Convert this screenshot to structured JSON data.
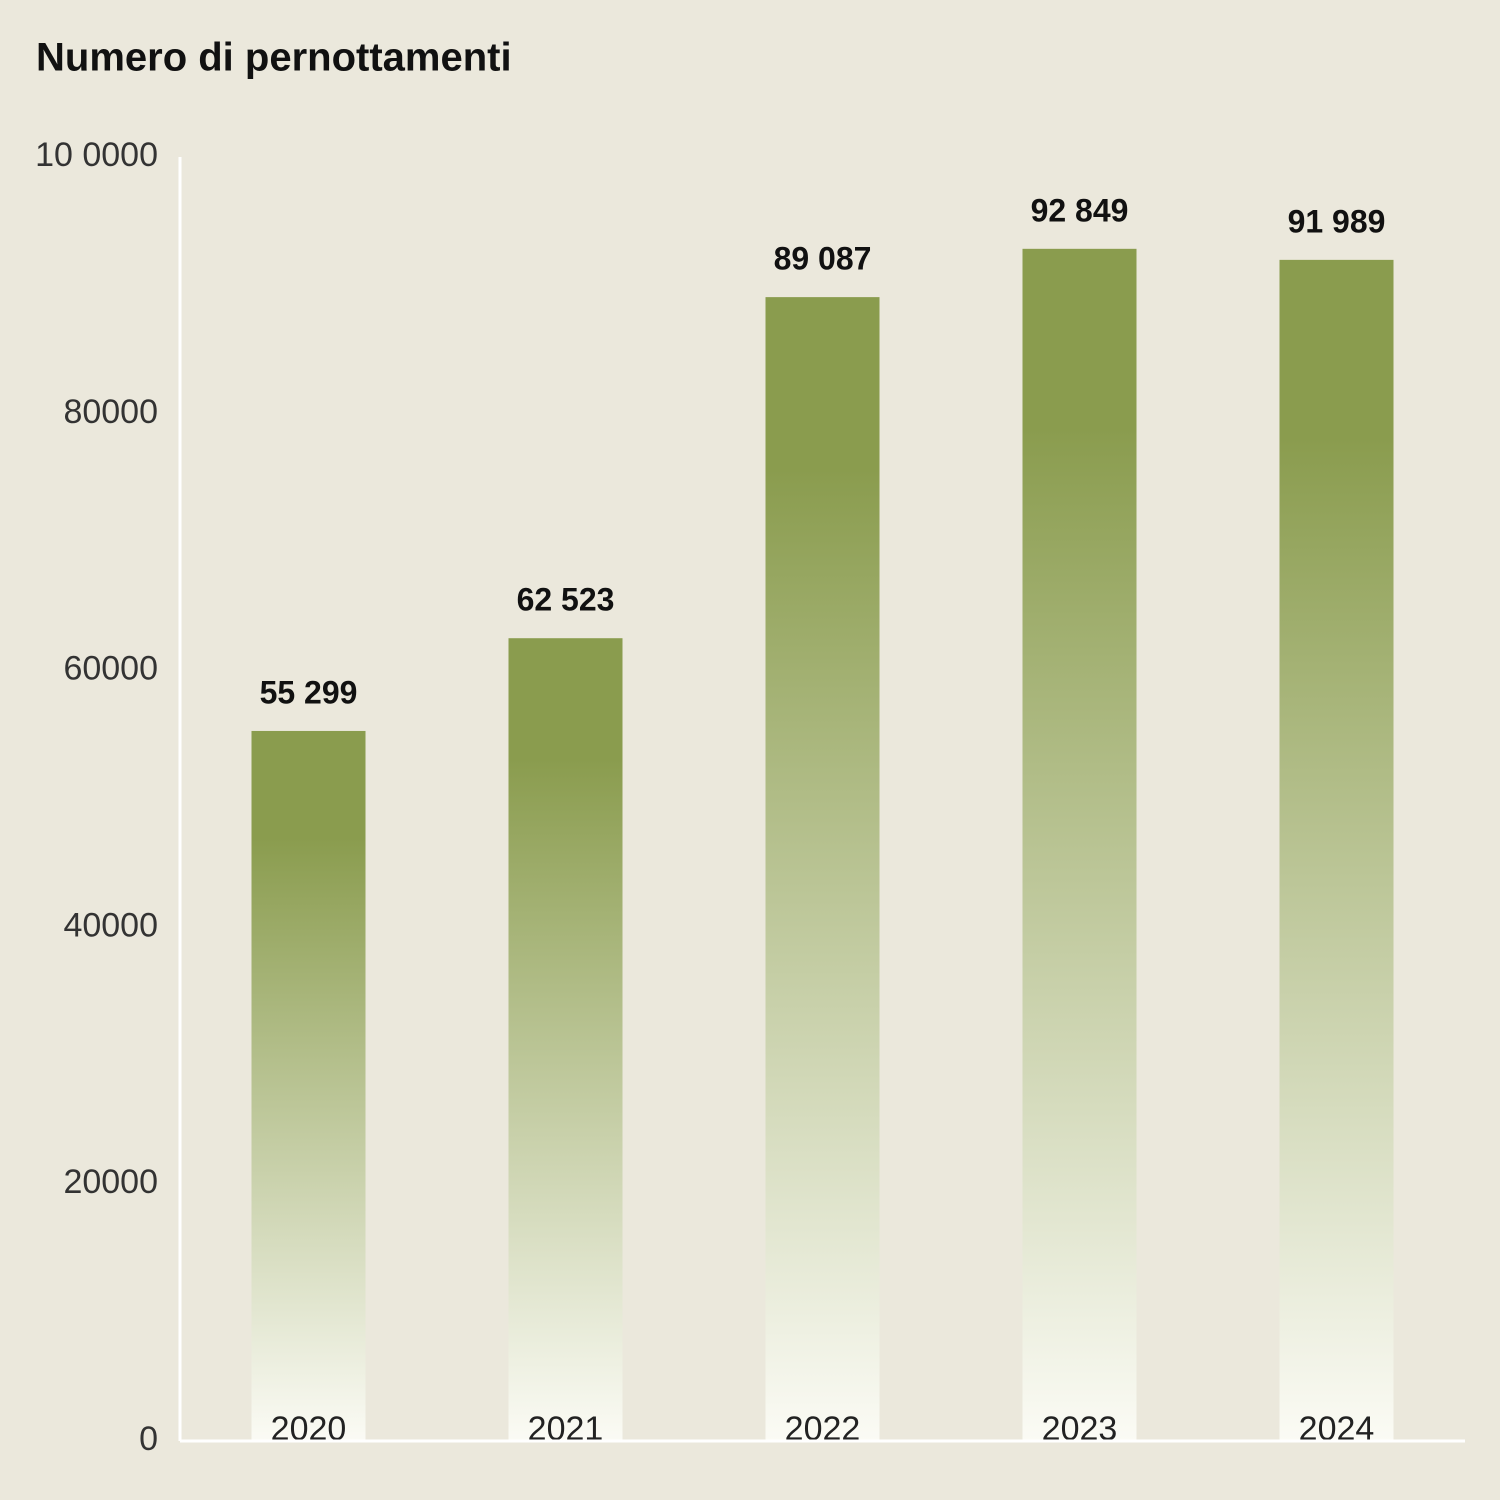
{
  "chart_data": {
    "type": "bar",
    "title": "Numero di pernottamenti",
    "categories": [
      "2020",
      "2021",
      "2022",
      "2023",
      "2024"
    ],
    "values": [
      55299,
      62523,
      89087,
      92849,
      91989
    ],
    "value_labels": [
      "55 299",
      "62 523",
      "89 087",
      "92 849",
      "91 989"
    ],
    "color": "#8a9c4e",
    "ylim": [
      0,
      100000
    ],
    "yticks": [
      0,
      20000,
      40000,
      60000,
      80000,
      {
        "value": 100000,
        "label": "10 0000"
      }
    ],
    "grid": false
  }
}
